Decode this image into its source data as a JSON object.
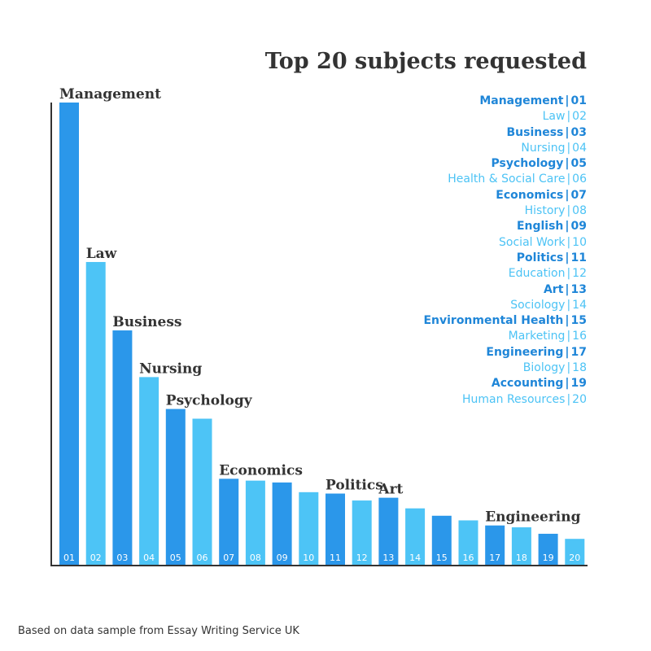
{
  "colors": {
    "dark": "#2b97ea",
    "light": "#4dc4f6",
    "axis": "#333333",
    "label": "#333333",
    "tick": "#ffffff"
  },
  "chart_data": {
    "type": "bar",
    "title": "Top 20 subjects requested",
    "xlabel": "",
    "ylabel": "",
    "ylim": [
      0,
      100
    ],
    "grid": false,
    "legend_placement": "top-right",
    "categories": [
      "01",
      "02",
      "03",
      "04",
      "05",
      "06",
      "07",
      "08",
      "09",
      "10",
      "11",
      "12",
      "13",
      "14",
      "15",
      "16",
      "17",
      "18",
      "19",
      "20"
    ],
    "subjects": [
      "Management",
      "Law",
      "Business",
      "Nursing",
      "Psychology",
      "Health & Social Care",
      "Economics",
      "History",
      "English",
      "Social Work",
      "Politics",
      "Education",
      "Art",
      "Sociology",
      "Environmental Health",
      "Marketing",
      "Engineering",
      "Biology",
      "Accounting",
      "Human Resources"
    ],
    "values": [
      100,
      65.5,
      50.7,
      40.6,
      33.7,
      31.6,
      18.6,
      18.2,
      17.8,
      15.7,
      15.4,
      13.9,
      14.5,
      12.2,
      10.6,
      9.6,
      8.5,
      8.1,
      6.7,
      5.6
    ],
    "bar_labels": [
      "Management",
      "Law",
      "Business",
      "Nursing",
      "Psychology",
      "",
      "Economics",
      "",
      "",
      "",
      "Politics",
      "",
      "Art",
      "",
      "",
      "",
      "Engineering",
      "",
      "",
      ""
    ]
  },
  "legend_items": [
    {
      "name": "Management",
      "num": "01"
    },
    {
      "name": "Law",
      "num": "02"
    },
    {
      "name": "Business",
      "num": "03"
    },
    {
      "name": "Nursing",
      "num": "04"
    },
    {
      "name": "Psychology",
      "num": "05"
    },
    {
      "name": "Health & Social Care",
      "num": "06"
    },
    {
      "name": "Economics",
      "num": "07"
    },
    {
      "name": "History",
      "num": "08"
    },
    {
      "name": "English",
      "num": "09"
    },
    {
      "name": "Social Work",
      "num": "10"
    },
    {
      "name": "Politics",
      "num": "11"
    },
    {
      "name": "Education",
      "num": "12"
    },
    {
      "name": "Art",
      "num": "13"
    },
    {
      "name": "Sociology",
      "num": "14"
    },
    {
      "name": "Environmental Health",
      "num": "15"
    },
    {
      "name": "Marketing",
      "num": "16"
    },
    {
      "name": "Engineering",
      "num": "17"
    },
    {
      "name": "Biology",
      "num": "18"
    },
    {
      "name": "Accounting",
      "num": "19"
    },
    {
      "name": "Human Resources",
      "num": "20"
    }
  ],
  "footer": {
    "source": "Based on data sample from Essay Writing Service UK"
  }
}
